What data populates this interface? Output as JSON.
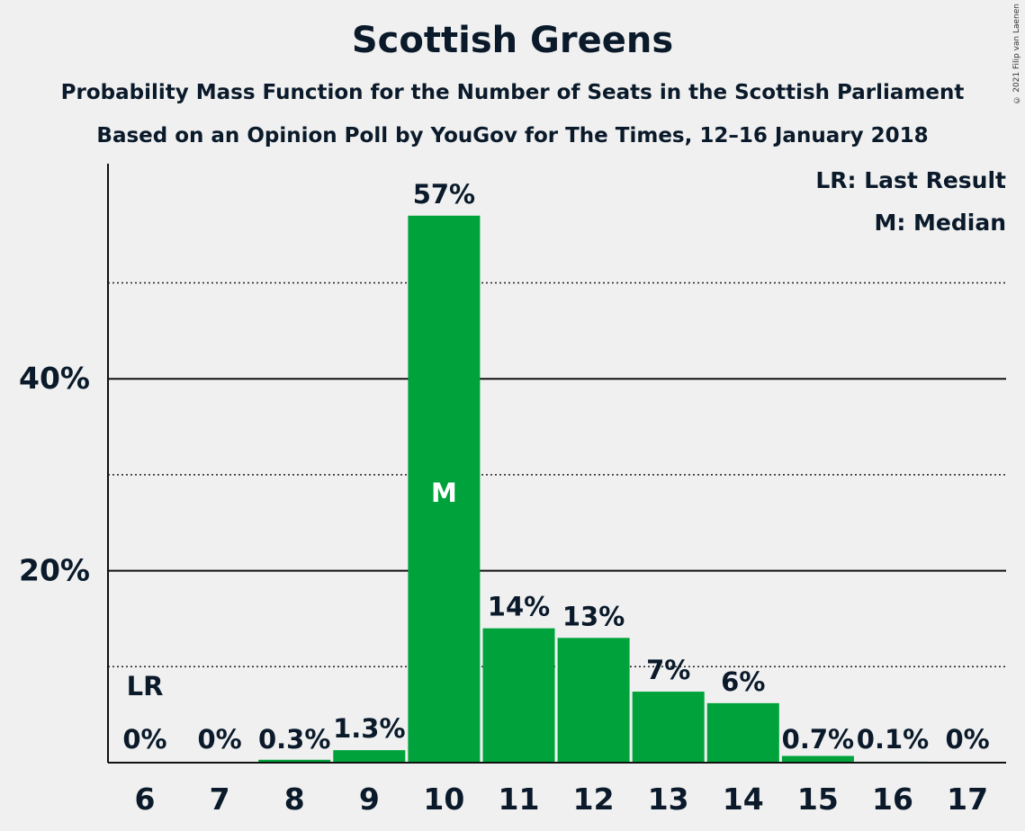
{
  "title": "Scottish Greens",
  "subtitle1": "Probability Mass Function for the Number of Seats in the Scottish Parliament",
  "subtitle2": "Based on an Opinion Poll by YouGov for The Times, 12–16 January 2018",
  "copyright": "© 2021 Filip van Laenen",
  "legend": {
    "last_result": "LR: Last Result",
    "median": "M: Median"
  },
  "colors": {
    "bar": "#00a33b",
    "background": "#f0f0f0",
    "text": "#0a1a2a"
  },
  "chart_data": {
    "type": "bar",
    "title": "Scottish Greens",
    "xlabel": "",
    "ylabel": "",
    "categories": [
      "6",
      "7",
      "8",
      "9",
      "10",
      "11",
      "12",
      "13",
      "14",
      "15",
      "16",
      "17"
    ],
    "values": [
      0,
      0,
      0.3,
      1.3,
      57,
      14,
      13,
      7.4,
      6.2,
      0.7,
      0.1,
      0
    ],
    "value_labels": [
      "0%",
      "0%",
      "0.3%",
      "1.3%",
      "57%",
      "14%",
      "13%",
      "7%",
      "6%",
      "0.7%",
      "0.1%",
      "0%"
    ],
    "ylim": [
      0,
      62
    ],
    "yticks": [
      20,
      40
    ],
    "ytick_labels": [
      "20%",
      "40%"
    ],
    "minor_gridlines": [
      10,
      30,
      50
    ],
    "last_result": {
      "category": "6",
      "label": "LR"
    },
    "median": {
      "category": "10",
      "label": "M"
    },
    "grid": true,
    "legend_position": "top-right"
  }
}
